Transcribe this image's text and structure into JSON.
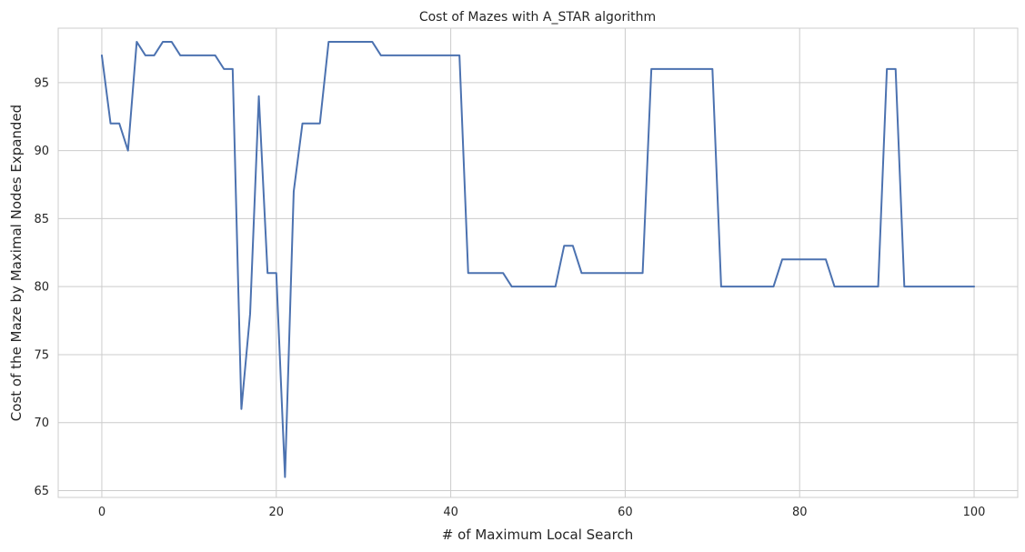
{
  "chart_data": {
    "type": "line",
    "title": "Cost of Mazes with A_STAR algorithm",
    "xlabel": "# of Maximum Local Search",
    "ylabel": "Cost of the Maze by Maximal Nodes Expanded",
    "xlim": [
      -5,
      105
    ],
    "ylim": [
      64.5,
      99.0
    ],
    "xticks": [
      0,
      20,
      40,
      60,
      80,
      100
    ],
    "yticks": [
      65,
      70,
      75,
      80,
      85,
      90,
      95
    ],
    "grid": true,
    "line_color": "#4c72b0",
    "series": [
      {
        "x": [
          0,
          1,
          2,
          3,
          4,
          5,
          6,
          7,
          8,
          9,
          10,
          11,
          12,
          13,
          14,
          15,
          16,
          17,
          18,
          19,
          20,
          21,
          22,
          23,
          24,
          25,
          26,
          27,
          28,
          29,
          30,
          31,
          32,
          33,
          34,
          35,
          36,
          37,
          38,
          39,
          40,
          41,
          42,
          43,
          44,
          45,
          46,
          47,
          48,
          49,
          50,
          51,
          52,
          53,
          54,
          55,
          56,
          57,
          58,
          59,
          60,
          61,
          62,
          63,
          64,
          65,
          66,
          67,
          68,
          69,
          70,
          71,
          72,
          73,
          74,
          75,
          76,
          77,
          78,
          79,
          80,
          81,
          82,
          83,
          84,
          85,
          86,
          87,
          88,
          89,
          90,
          91,
          92,
          93,
          94,
          95,
          96,
          97,
          98,
          99,
          100
        ],
        "values": [
          97,
          92,
          92,
          90,
          98,
          97,
          97,
          98,
          98,
          97,
          97,
          97,
          97,
          97,
          96,
          96,
          71,
          78,
          94,
          81,
          81,
          66,
          87,
          92,
          92,
          92,
          98,
          98,
          98,
          98,
          98,
          98,
          97,
          97,
          97,
          97,
          97,
          97,
          97,
          97,
          97,
          97,
          81,
          81,
          81,
          81,
          81,
          80,
          80,
          80,
          80,
          80,
          80,
          83,
          83,
          81,
          81,
          81,
          81,
          81,
          81,
          81,
          81,
          96,
          96,
          96,
          96,
          96,
          96,
          96,
          96,
          80,
          80,
          80,
          80,
          80,
          80,
          80,
          82,
          82,
          82,
          82,
          82,
          82,
          80,
          80,
          80,
          80,
          80,
          80,
          96,
          96,
          80,
          80,
          80,
          80,
          80,
          80,
          80,
          80,
          80
        ]
      }
    ]
  }
}
